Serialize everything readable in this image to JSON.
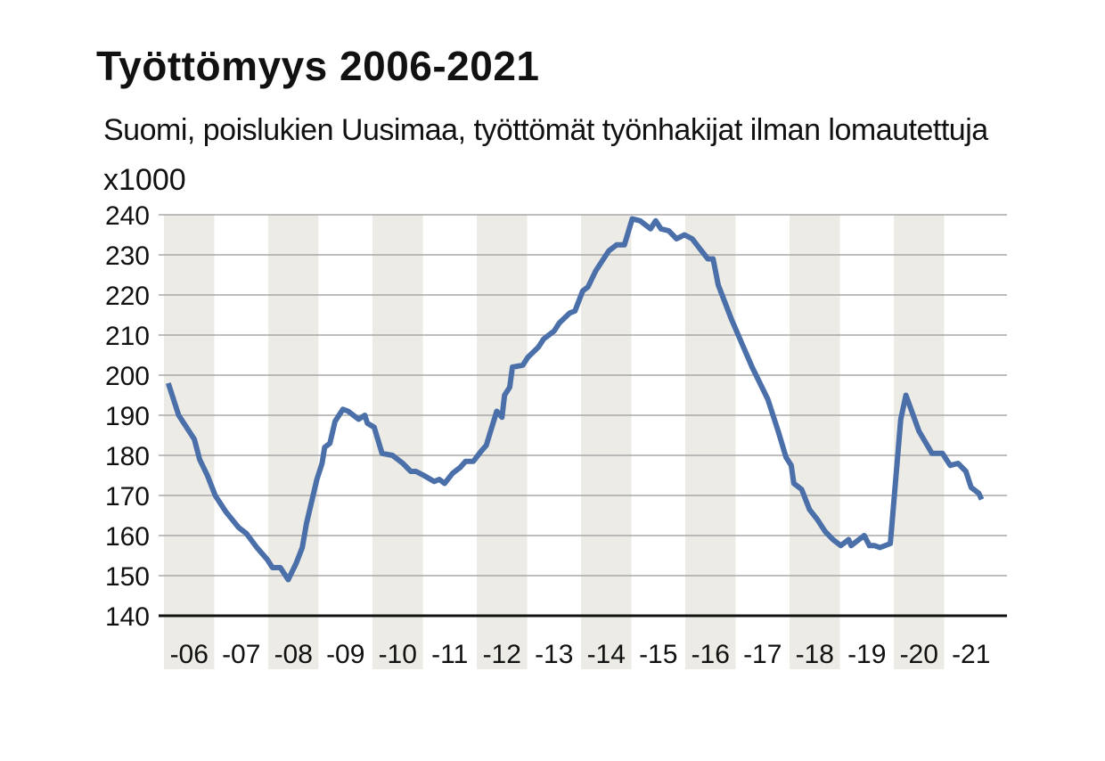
{
  "chart_data": {
    "type": "line",
    "title": "Työttömyys 2006-2021",
    "subtitle": "Suomi, poislukien Uusimaa, työttömät työnhakijat ilman lomautettuja",
    "ylabel": "x1000",
    "ylim": [
      140,
      240
    ],
    "yticks": [
      140,
      150,
      160,
      170,
      180,
      190,
      200,
      210,
      220,
      230,
      240
    ],
    "xlim": [
      2006,
      2021.75
    ],
    "categories": [
      "-06",
      "-07",
      "-08",
      "-09",
      "-10",
      "-11",
      "-12",
      "-13",
      "-14",
      "-15",
      "-16",
      "-17",
      "-18",
      "-19",
      "-20",
      "-21"
    ],
    "shaded_years": [
      "-06",
      "-08",
      "-10",
      "-12",
      "-14",
      "-16",
      "-18",
      "-20"
    ],
    "grid": true,
    "legend": "none",
    "colors": {
      "line": "#4a6fa9",
      "band": "#ecebe5",
      "grid": "#a8a8a8",
      "axis": "#111111"
    },
    "series": [
      {
        "points": [
          [
            2006.1,
            198
          ],
          [
            2006.3,
            190
          ],
          [
            2006.55,
            185
          ],
          [
            2006.6,
            184
          ],
          [
            2006.7,
            179
          ],
          [
            2006.85,
            175
          ],
          [
            2007.0,
            170
          ],
          [
            2007.2,
            166
          ],
          [
            2007.45,
            162
          ],
          [
            2007.6,
            160.5
          ],
          [
            2007.8,
            157
          ],
          [
            2008.0,
            154
          ],
          [
            2008.1,
            152
          ],
          [
            2008.25,
            152
          ],
          [
            2008.4,
            149
          ],
          [
            2008.55,
            153
          ],
          [
            2008.67,
            157
          ],
          [
            2008.75,
            163
          ],
          [
            2008.95,
            174
          ],
          [
            2009.05,
            178
          ],
          [
            2009.1,
            182
          ],
          [
            2009.2,
            183
          ],
          [
            2009.3,
            188.5
          ],
          [
            2009.45,
            191.5
          ],
          [
            2009.55,
            191
          ],
          [
            2009.75,
            189
          ],
          [
            2009.87,
            190
          ],
          [
            2009.92,
            188
          ],
          [
            2010.05,
            187
          ],
          [
            2010.2,
            180.5
          ],
          [
            2010.4,
            180
          ],
          [
            2010.6,
            178
          ],
          [
            2010.75,
            176
          ],
          [
            2010.85,
            176
          ],
          [
            2011.0,
            175
          ],
          [
            2011.2,
            173.5
          ],
          [
            2011.3,
            174
          ],
          [
            2011.4,
            173
          ],
          [
            2011.55,
            175.5
          ],
          [
            2011.7,
            177
          ],
          [
            2011.8,
            178.5
          ],
          [
            2011.95,
            178.5
          ],
          [
            2012.1,
            181
          ],
          [
            2012.2,
            182.5
          ],
          [
            2012.4,
            191
          ],
          [
            2012.5,
            189.5
          ],
          [
            2012.55,
            195
          ],
          [
            2012.65,
            197
          ],
          [
            2012.7,
            202
          ],
          [
            2012.9,
            202.5
          ],
          [
            2013.0,
            204.5
          ],
          [
            2013.2,
            207
          ],
          [
            2013.3,
            209
          ],
          [
            2013.5,
            211
          ],
          [
            2013.6,
            213
          ],
          [
            2013.8,
            215.5
          ],
          [
            2013.9,
            216
          ],
          [
            2014.05,
            221
          ],
          [
            2014.15,
            222
          ],
          [
            2014.3,
            226
          ],
          [
            2014.45,
            229
          ],
          [
            2014.55,
            231
          ],
          [
            2014.7,
            232.5
          ],
          [
            2014.85,
            232.5
          ],
          [
            2015.0,
            239
          ],
          [
            2015.15,
            238.5
          ],
          [
            2015.25,
            237.5
          ],
          [
            2015.35,
            236.5
          ],
          [
            2015.45,
            238.5
          ],
          [
            2015.55,
            236.5
          ],
          [
            2015.7,
            236
          ],
          [
            2015.85,
            234
          ],
          [
            2016.0,
            235
          ],
          [
            2016.15,
            234
          ],
          [
            2016.3,
            231.5
          ],
          [
            2016.45,
            229
          ],
          [
            2016.55,
            229
          ],
          [
            2016.65,
            222.5
          ],
          [
            2016.9,
            214
          ],
          [
            2017.1,
            208
          ],
          [
            2017.3,
            202
          ],
          [
            2017.6,
            194
          ],
          [
            2017.8,
            186
          ],
          [
            2017.95,
            179.5
          ],
          [
            2018.05,
            177.5
          ],
          [
            2018.1,
            173
          ],
          [
            2018.25,
            171.5
          ],
          [
            2018.4,
            166.5
          ],
          [
            2018.55,
            164
          ],
          [
            2018.7,
            161
          ],
          [
            2018.85,
            159
          ],
          [
            2019.0,
            157.5
          ],
          [
            2019.15,
            159
          ],
          [
            2019.2,
            157.5
          ],
          [
            2019.3,
            158.5
          ],
          [
            2019.45,
            160
          ],
          [
            2019.55,
            157.5
          ],
          [
            2019.65,
            157.5
          ],
          [
            2019.75,
            157
          ],
          [
            2019.95,
            158
          ],
          [
            2020.15,
            189
          ],
          [
            2020.25,
            195
          ],
          [
            2020.5,
            186
          ],
          [
            2020.75,
            180.5
          ],
          [
            2020.95,
            180.5
          ],
          [
            2021.1,
            177.5
          ],
          [
            2021.25,
            178
          ],
          [
            2021.4,
            176
          ],
          [
            2021.5,
            172
          ],
          [
            2021.65,
            170.5
          ],
          [
            2021.7,
            169
          ]
        ]
      }
    ]
  }
}
